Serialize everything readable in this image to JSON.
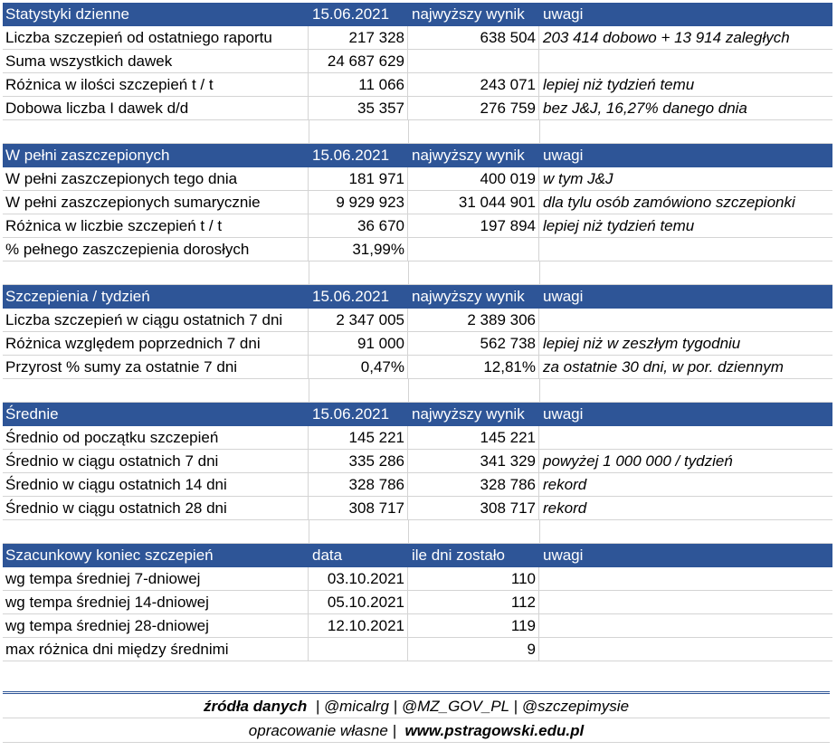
{
  "sections": [
    {
      "header": [
        "Statystyki dzienne",
        "15.06.2021",
        "najwyższy wynik",
        "uwagi"
      ],
      "rows": [
        [
          "Liczba szczepień od ostatniego raportu",
          "217 328",
          "638 504",
          "203 414 dobowo + 13 914 zaległych"
        ],
        [
          "Suma wszystkich dawek",
          "24 687 629",
          "",
          ""
        ],
        [
          "Różnica w ilości szczepień t / t",
          "11 066",
          "243 071",
          "lepiej niż tydzień temu"
        ],
        [
          "Dobowa liczba I dawek d/d",
          "35 357",
          "276 759",
          "bez J&J, 16,27% danego dnia"
        ]
      ]
    },
    {
      "header": [
        "W pełni zaszczepionych",
        "15.06.2021",
        "najwyższy wynik",
        "uwagi"
      ],
      "rows": [
        [
          "W pełni zaszczepionych tego dnia",
          "181 971",
          "400 019",
          "w tym J&J"
        ],
        [
          "W pełni zaszczepionych sumarycznie",
          "9 929 923",
          "31 044 901",
          "dla tylu osób zamówiono szczepionki"
        ],
        [
          "Różnica w liczbie szczepień t / t",
          "36 670",
          "197 894",
          "lepiej niż tydzień temu"
        ],
        [
          "% pełnego zaszczepienia dorosłych",
          "31,99%",
          "",
          ""
        ]
      ]
    },
    {
      "header": [
        "Szczepienia / tydzień",
        "15.06.2021",
        "najwyższy wynik",
        "uwagi"
      ],
      "rows": [
        [
          "Liczba szczepień w ciągu ostatnich 7 dni",
          "2 347 005",
          "2 389 306",
          ""
        ],
        [
          "Różnica względem poprzednich 7 dni",
          "91 000",
          "562 738",
          "lepiej niż w zeszłym tygodniu"
        ],
        [
          "Przyrost % sumy za ostatnie 7 dni",
          "0,47%",
          "12,81%",
          "za ostatnie 30 dni, w por. dziennym"
        ]
      ]
    },
    {
      "header": [
        "Średnie",
        "15.06.2021",
        "najwyższy wynik",
        "uwagi"
      ],
      "rows": [
        [
          "Średnio od początku szczepień",
          "145 221",
          "145 221",
          ""
        ],
        [
          "Średnio w ciągu ostatnich 7 dni",
          "335 286",
          "341 329",
          "powyżej 1 000 000 / tydzień"
        ],
        [
          "Średnio w ciągu ostatnich 14 dni",
          "328 786",
          "328 786",
          "rekord"
        ],
        [
          "Średnio w ciągu ostatnich 28 dni",
          "308 717",
          "308 717",
          "rekord"
        ]
      ]
    },
    {
      "header": [
        "Szacunkowy koniec szczepień",
        "data",
        "ile dni zostało",
        "uwagi"
      ],
      "rows": [
        [
          "wg tempa średniej 7-dniowej",
          "03.10.2021",
          "110",
          ""
        ],
        [
          "wg tempa średniej 14-dniowej",
          "05.10.2021",
          "112",
          ""
        ],
        [
          "wg tempa średniej 28-dniowej",
          "12.10.2021",
          "119",
          ""
        ],
        [
          "max różnica dni między średnimi",
          "",
          "9",
          ""
        ]
      ]
    }
  ],
  "footer": {
    "sources_label": "źródła danych",
    "sources_sep1": "|",
    "source1": "@micalrg",
    "sources_sep2": "|",
    "source2": "@MZ_GOV_PL",
    "sources_sep3": "|",
    "source3": "@szczepimysie",
    "own_work": "opracowanie własne",
    "own_sep": "|",
    "website": "www.pstragowski.edu.pl"
  },
  "colors": {
    "header_bg": "#2e5597",
    "header_text": "#ffffff",
    "grid": "#d4d4d4"
  }
}
